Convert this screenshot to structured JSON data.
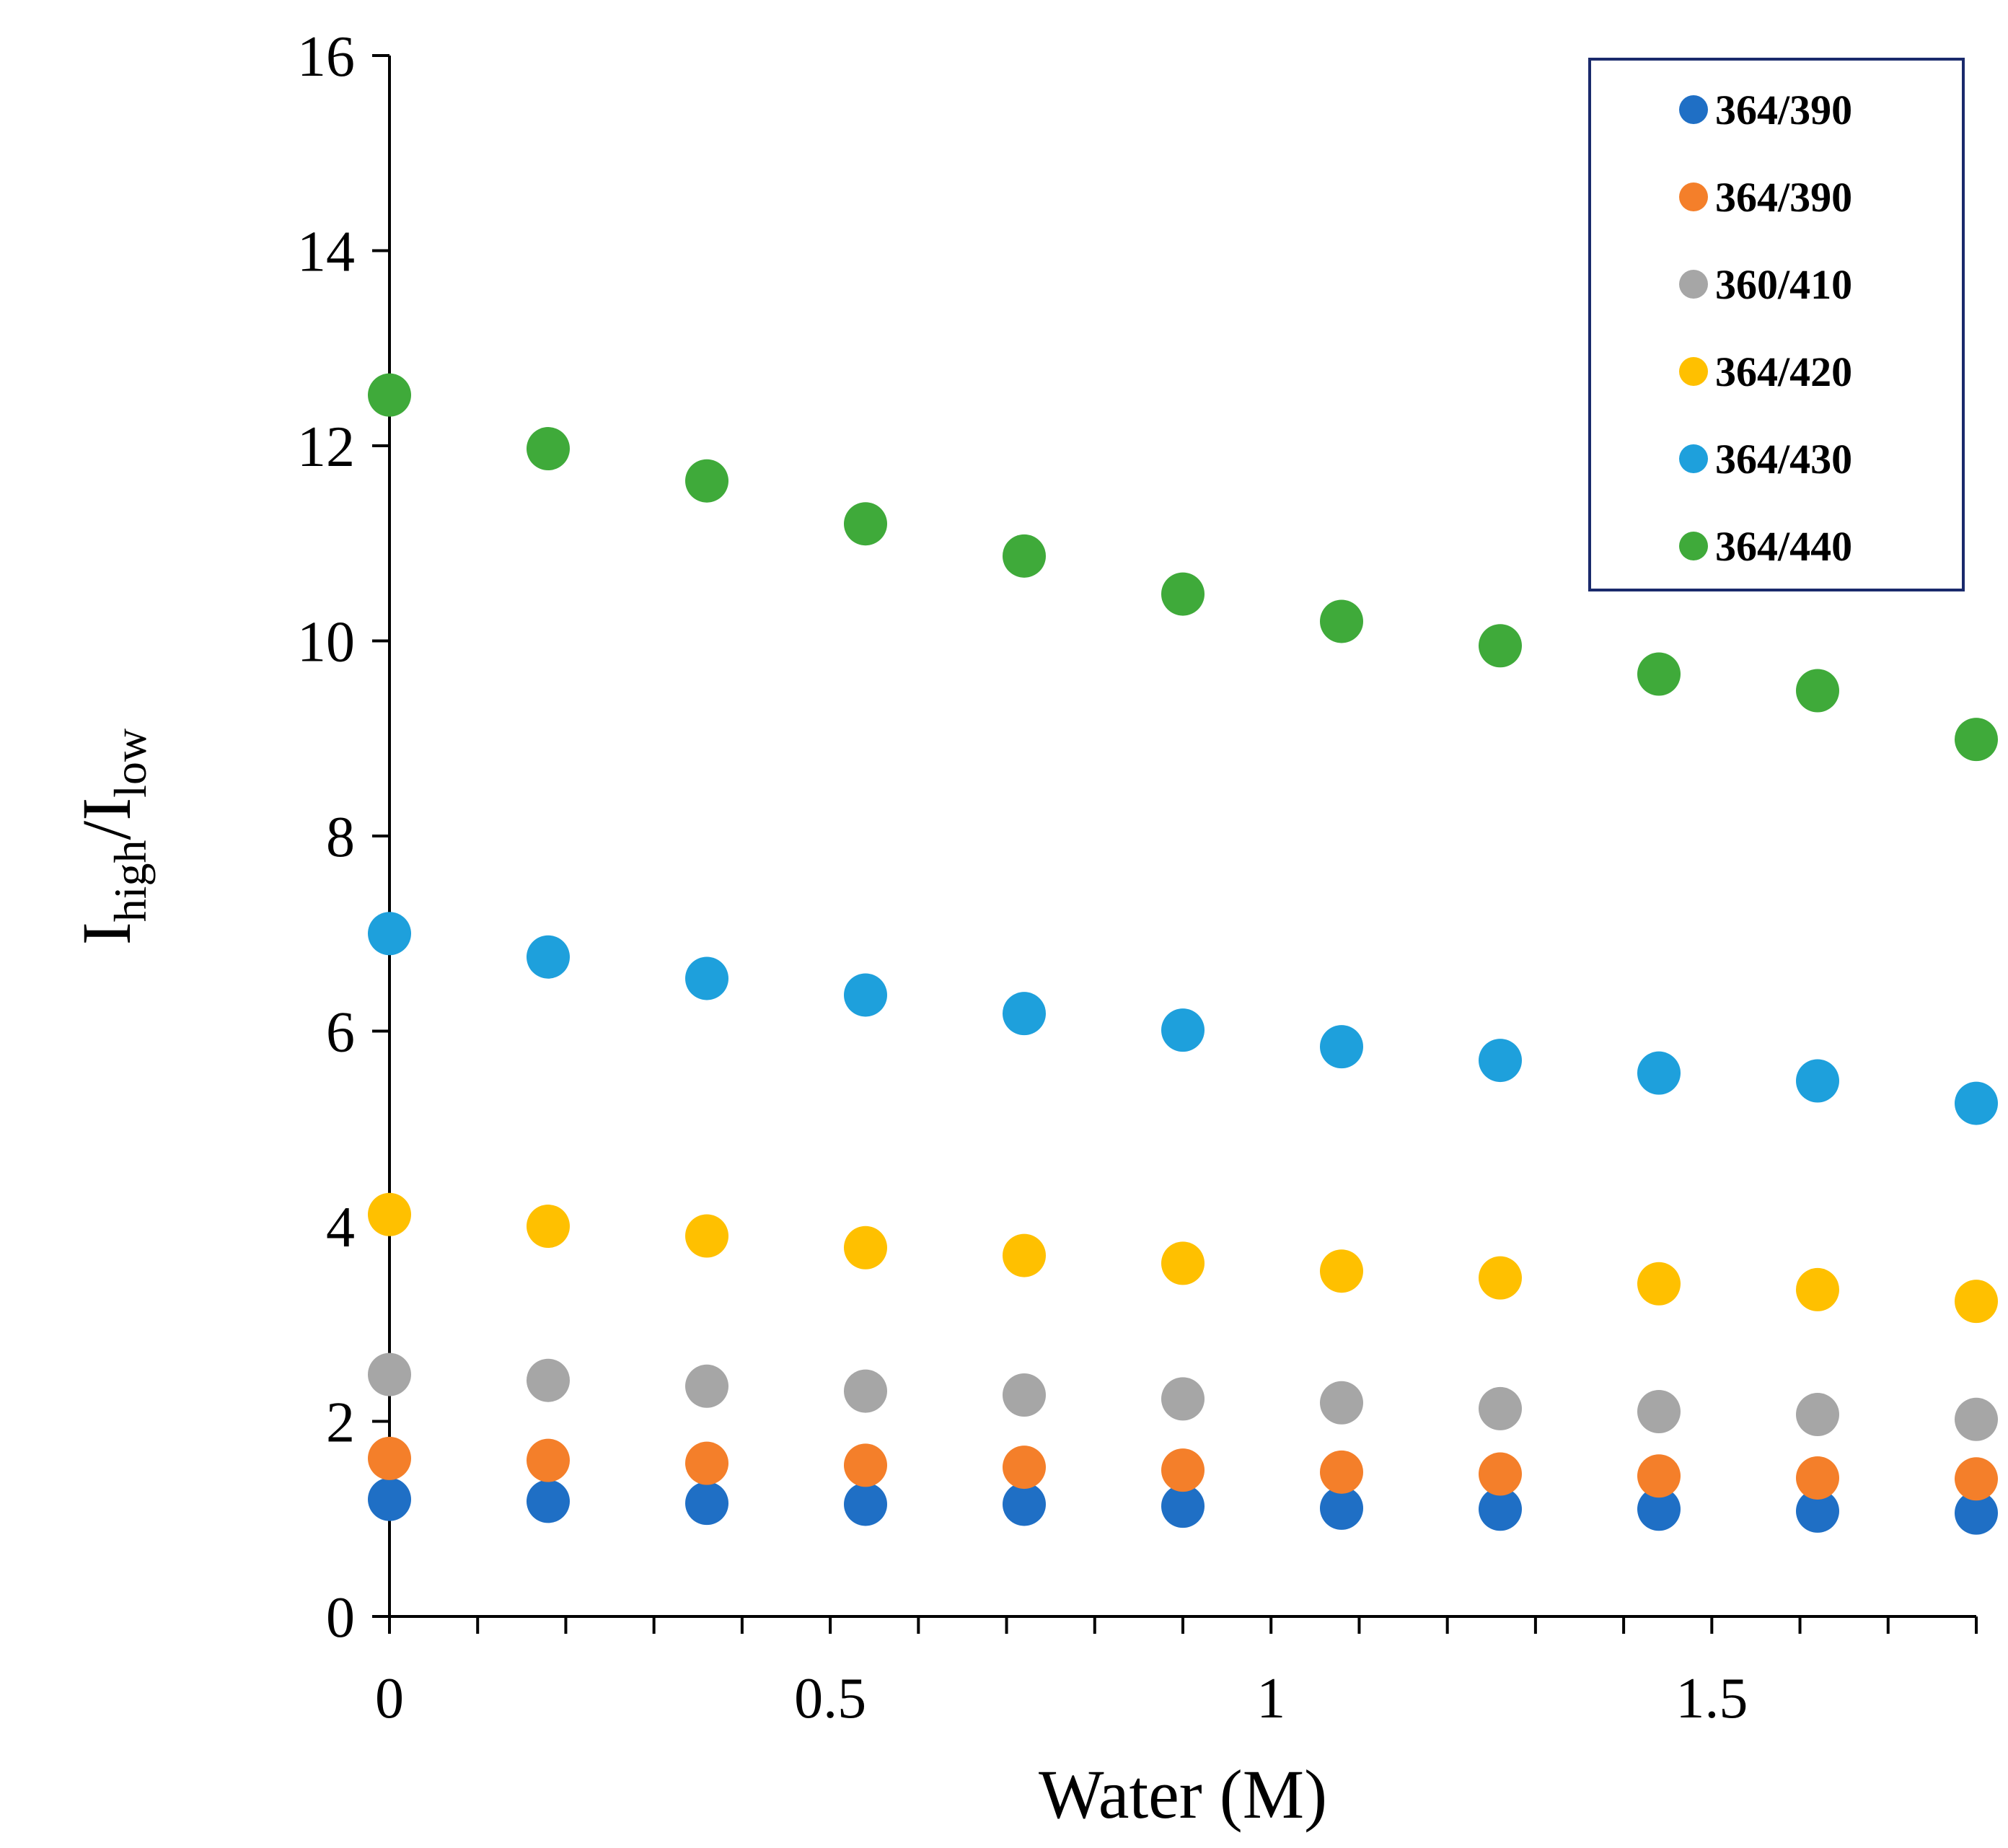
{
  "chart_data": {
    "type": "scatter",
    "title": "",
    "xlabel": "Water (M)",
    "ylabel": {
      "main": "I",
      "sub1": "high",
      "slash": "/",
      "main2": "I",
      "sub2": "low"
    },
    "xlim": [
      0,
      1.8
    ],
    "ylim": [
      0,
      16
    ],
    "xticks": [
      0,
      0.5,
      1,
      1.5
    ],
    "xtick_labels": [
      "0",
      "0.5",
      "1",
      "1.5"
    ],
    "yticks": [
      0,
      2,
      4,
      6,
      8,
      10,
      12,
      14,
      16
    ],
    "ytick_labels": [
      "0",
      "2",
      "4",
      "6",
      "8",
      "10",
      "12",
      "14",
      "16"
    ],
    "x": [
      0,
      0.18,
      0.36,
      0.54,
      0.72,
      0.9,
      1.08,
      1.26,
      1.44,
      1.62,
      1.8
    ],
    "legend_position": "top-right",
    "series": [
      {
        "name": "364/390",
        "color": "#1f6fc5",
        "values": [
          1.2,
          1.18,
          1.16,
          1.15,
          1.15,
          1.13,
          1.11,
          1.1,
          1.1,
          1.08,
          1.06
        ]
      },
      {
        "name": "364/390",
        "color": "#f47f2a",
        "values": [
          1.62,
          1.6,
          1.57,
          1.55,
          1.53,
          1.5,
          1.48,
          1.46,
          1.44,
          1.42,
          1.41
        ]
      },
      {
        "name": "360/410",
        "color": "#a6a6a6",
        "values": [
          2.48,
          2.42,
          2.36,
          2.31,
          2.27,
          2.23,
          2.19,
          2.13,
          2.1,
          2.07,
          2.02
        ]
      },
      {
        "name": "364/420",
        "color": "#ffc000",
        "values": [
          4.12,
          4.0,
          3.9,
          3.78,
          3.7,
          3.62,
          3.54,
          3.47,
          3.41,
          3.35,
          3.23
        ]
      },
      {
        "name": "364/430",
        "color": "#1ea0dc",
        "values": [
          7.0,
          6.76,
          6.54,
          6.37,
          6.18,
          6.01,
          5.84,
          5.7,
          5.57,
          5.49,
          5.26
        ]
      },
      {
        "name": "364/440",
        "color": "#3faa3a",
        "values": [
          12.52,
          11.97,
          11.64,
          11.2,
          10.87,
          10.48,
          10.2,
          9.95,
          9.66,
          9.49,
          8.99
        ]
      }
    ]
  }
}
